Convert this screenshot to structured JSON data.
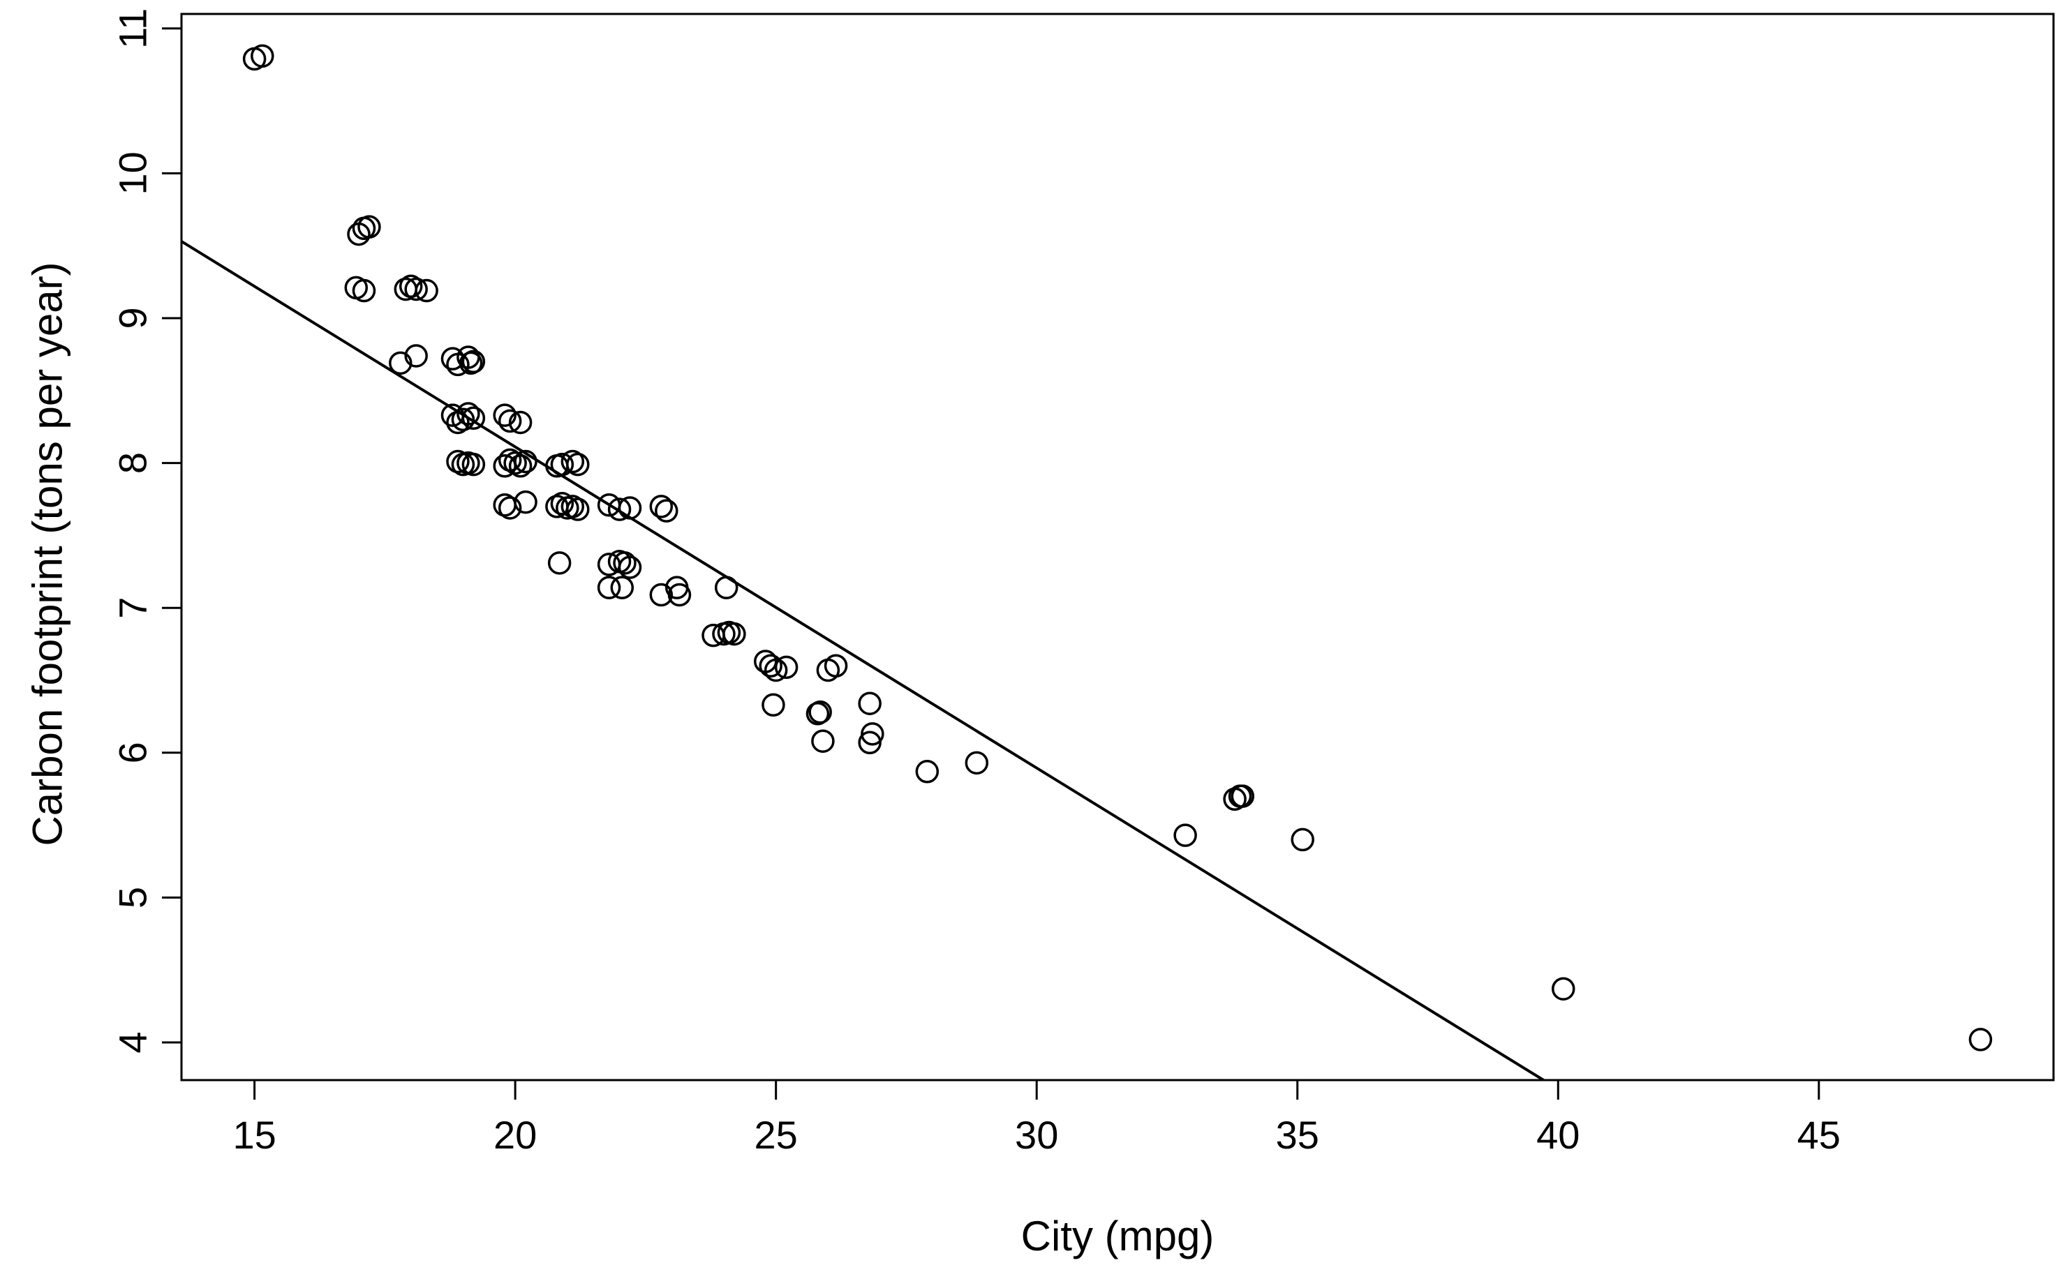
{
  "chart_data": {
    "type": "scatter",
    "xlabel": "City (mpg)",
    "ylabel": "Carbon footprint (tons per year)",
    "xlim": [
      13.6,
      49.5
    ],
    "ylim": [
      3.74,
      11.1
    ],
    "xticks": [
      15,
      20,
      25,
      30,
      35,
      40,
      45
    ],
    "yticks": [
      4,
      5,
      6,
      7,
      8,
      9,
      10,
      11
    ],
    "grid": false,
    "series": [
      {
        "points": [
          [
            15,
            10.79
          ],
          [
            15.15,
            10.81
          ],
          [
            17,
            9.58
          ],
          [
            17.1,
            9.62
          ],
          [
            17.2,
            9.63
          ],
          [
            16.95,
            9.21
          ],
          [
            17.1,
            9.19
          ],
          [
            17.9,
            9.2
          ],
          [
            18,
            9.22
          ],
          [
            18.1,
            9.2
          ],
          [
            18.3,
            9.19
          ],
          [
            17.8,
            8.69
          ],
          [
            18.1,
            8.74
          ],
          [
            18.8,
            8.72
          ],
          [
            18.9,
            8.68
          ],
          [
            19.1,
            8.73
          ],
          [
            19.15,
            8.69
          ],
          [
            19.2,
            8.7
          ],
          [
            18.8,
            8.33
          ],
          [
            18.9,
            8.28
          ],
          [
            19.0,
            8.3
          ],
          [
            19.1,
            8.34
          ],
          [
            19.2,
            8.31
          ],
          [
            18.9,
            8.01
          ],
          [
            19.0,
            7.99
          ],
          [
            19.1,
            8.0
          ],
          [
            19.2,
            7.99
          ],
          [
            19.8,
            8.33
          ],
          [
            19.9,
            8.29
          ],
          [
            20.1,
            8.28
          ],
          [
            19.8,
            7.98
          ],
          [
            19.9,
            8.02
          ],
          [
            20.0,
            8.0
          ],
          [
            20.1,
            7.98
          ],
          [
            20.2,
            8.01
          ],
          [
            19.8,
            7.71
          ],
          [
            19.9,
            7.69
          ],
          [
            20.2,
            7.73
          ],
          [
            20.8,
            7.98
          ],
          [
            20.9,
            7.99
          ],
          [
            21.1,
            8.01
          ],
          [
            21.2,
            7.99
          ],
          [
            20.8,
            7.7
          ],
          [
            20.9,
            7.72
          ],
          [
            21.0,
            7.69
          ],
          [
            21.1,
            7.7
          ],
          [
            21.2,
            7.68
          ],
          [
            20.85,
            7.31
          ],
          [
            21.8,
            7.71
          ],
          [
            22.0,
            7.68
          ],
          [
            22.2,
            7.69
          ],
          [
            21.8,
            7.3
          ],
          [
            22.0,
            7.32
          ],
          [
            22.1,
            7.31
          ],
          [
            22.2,
            7.28
          ],
          [
            21.8,
            7.14
          ],
          [
            22.05,
            7.14
          ],
          [
            22.8,
            7.7
          ],
          [
            22.9,
            7.67
          ],
          [
            22.8,
            7.09
          ],
          [
            23.1,
            7.14
          ],
          [
            23.15,
            7.09
          ],
          [
            24.05,
            7.14
          ],
          [
            23.8,
            6.81
          ],
          [
            24.0,
            6.82
          ],
          [
            24.1,
            6.83
          ],
          [
            24.2,
            6.82
          ],
          [
            24.8,
            6.63
          ],
          [
            24.9,
            6.6
          ],
          [
            25.0,
            6.57
          ],
          [
            25.2,
            6.59
          ],
          [
            24.95,
            6.33
          ],
          [
            25.8,
            6.27
          ],
          [
            25.85,
            6.28
          ],
          [
            26.0,
            6.57
          ],
          [
            26.15,
            6.6
          ],
          [
            25.9,
            6.08
          ],
          [
            26.8,
            6.34
          ],
          [
            26.85,
            6.13
          ],
          [
            26.8,
            6.07
          ],
          [
            27.9,
            5.87
          ],
          [
            28.85,
            5.93
          ],
          [
            32.85,
            5.43
          ],
          [
            33.8,
            5.68
          ],
          [
            33.9,
            5.7
          ],
          [
            33.95,
            5.7
          ],
          [
            35.1,
            5.4
          ],
          [
            40.1,
            4.37
          ],
          [
            48.1,
            4.02
          ]
        ]
      }
    ],
    "fit_line": {
      "x1": 13.6,
      "y1": 9.53,
      "x2": 39.72,
      "y2": 3.74
    }
  }
}
